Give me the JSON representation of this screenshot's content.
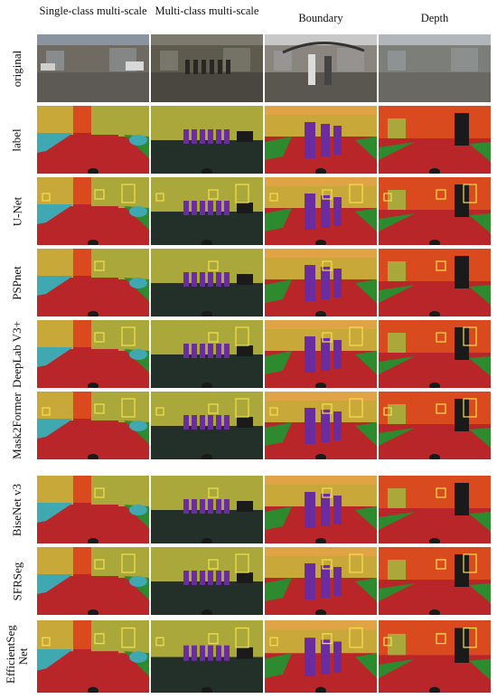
{
  "columns": [
    {
      "id": "single",
      "label": "Single-class multi-scale"
    },
    {
      "id": "multi",
      "label": "Multi-class multi-scale"
    },
    {
      "id": "boundary",
      "label": "Boundary"
    },
    {
      "id": "depth",
      "label": "Depth"
    }
  ],
  "rows": [
    {
      "id": "original",
      "label": "original"
    },
    {
      "id": "label",
      "label": "label"
    },
    {
      "id": "unet",
      "label": "U-Net"
    },
    {
      "id": "pspnet",
      "label": "PSPnet"
    },
    {
      "id": "deeplab",
      "label": "DeepLab V3+"
    },
    {
      "id": "mask2former",
      "label": "Mask2Former"
    },
    {
      "id": "bisenet",
      "label": "BiseNet v3"
    },
    {
      "id": "sfrseg",
      "label": "SFRSeg"
    },
    {
      "id": "efficientseg",
      "label": "EfficientSeg Net"
    }
  ],
  "colors": {
    "road": "#b8262a",
    "sky": "#d94a1f",
    "building": "#c9a83a",
    "vegetation": "#aaa83a",
    "car": "#3fa8b0",
    "person": "#6a2c9e",
    "sidewalk": "#2e8a2e",
    "dark": "#1a1a1a",
    "highlight_box": "#f4e04d"
  }
}
